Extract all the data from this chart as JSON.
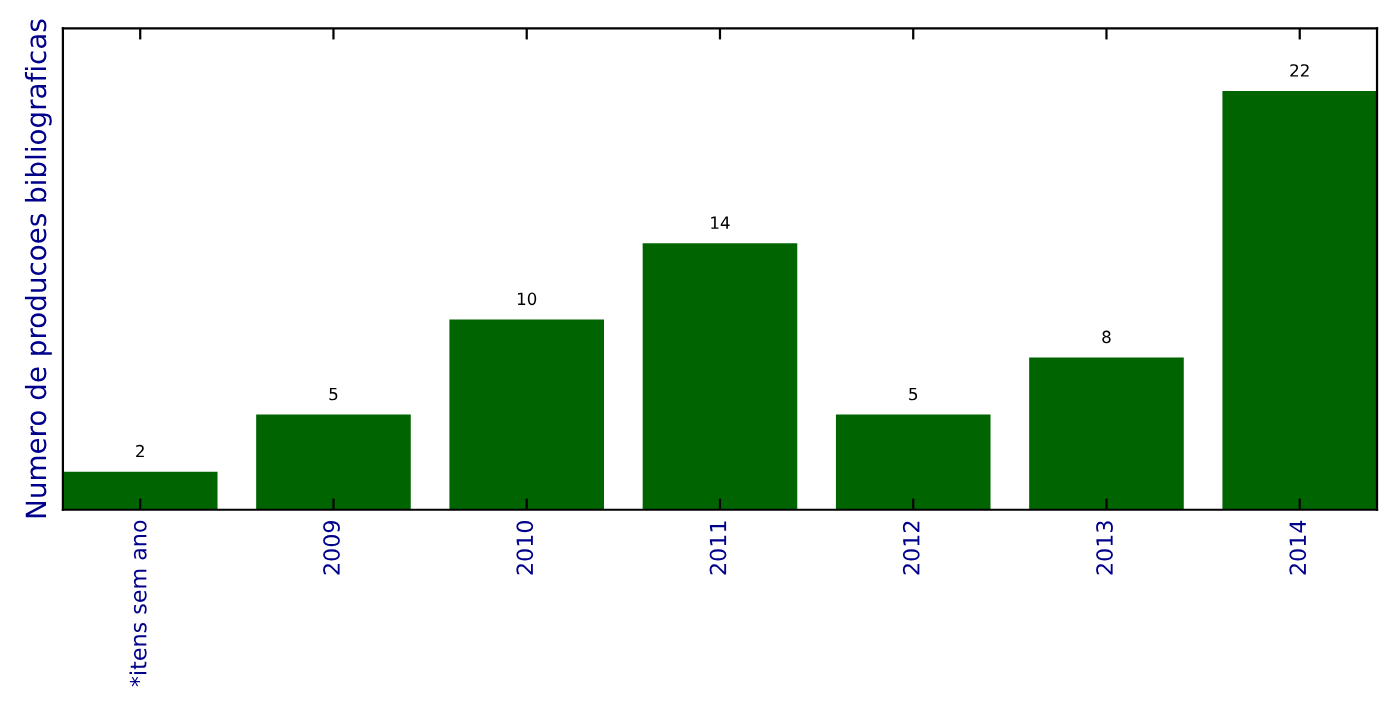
{
  "chart_data": {
    "type": "bar",
    "ylabel": "Numero de producoes bibliograficas",
    "categories": [
      "*itens sem ano",
      "2009",
      "2010",
      "2011",
      "2012",
      "2013",
      "2014"
    ],
    "values": [
      2,
      5,
      10,
      14,
      5,
      8,
      22
    ],
    "color": "#006400",
    "ylim": [
      0,
      25.3
    ],
    "tick_labels": "x",
    "data_labels": true,
    "grid": false,
    "legend": false
  }
}
